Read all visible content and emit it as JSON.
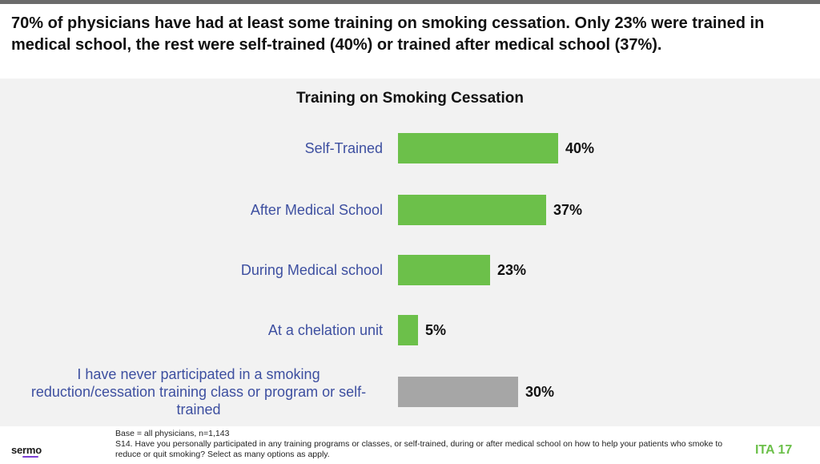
{
  "headline": "70% of physicians have had at least some training on smoking cessation.  Only 23% were trained in medical school, the rest were self-trained (40%) or trained after medical school (37%).",
  "chart_data": {
    "type": "bar",
    "orientation": "horizontal",
    "title": "Training on Smoking Cessation",
    "categories": [
      [
        "Self-Trained"
      ],
      [
        "After Medical School"
      ],
      [
        "During Medical school"
      ],
      [
        "At a chelation unit"
      ],
      [
        "I have never participated in a smoking",
        "reduction/cessation training class or program or self-",
        "trained"
      ]
    ],
    "values": [
      40,
      37,
      23,
      5,
      30
    ],
    "value_labels": [
      "40%",
      "37%",
      "23%",
      "5%",
      "30%"
    ],
    "unit": "%",
    "colors": [
      "#6cc04a",
      "#6cc04a",
      "#6cc04a",
      "#6cc04a",
      "#a6a6a6"
    ],
    "xlim": [
      0,
      40
    ],
    "grid": false,
    "legend": "none"
  },
  "footer": {
    "base": "Base = all physicians, n=1,143",
    "question": "S14. Have you personally participated in any training programs or classes, or self-trained, during or after medical school on how to help your patients who smoke to reduce or quit smoking? Select as many options as apply."
  },
  "logo": "sermo",
  "page_label": "ITA 17",
  "colors": {
    "accent_green": "#6cc04a",
    "label_blue": "#3d4fa0",
    "panel_bg": "#f2f2f2"
  }
}
